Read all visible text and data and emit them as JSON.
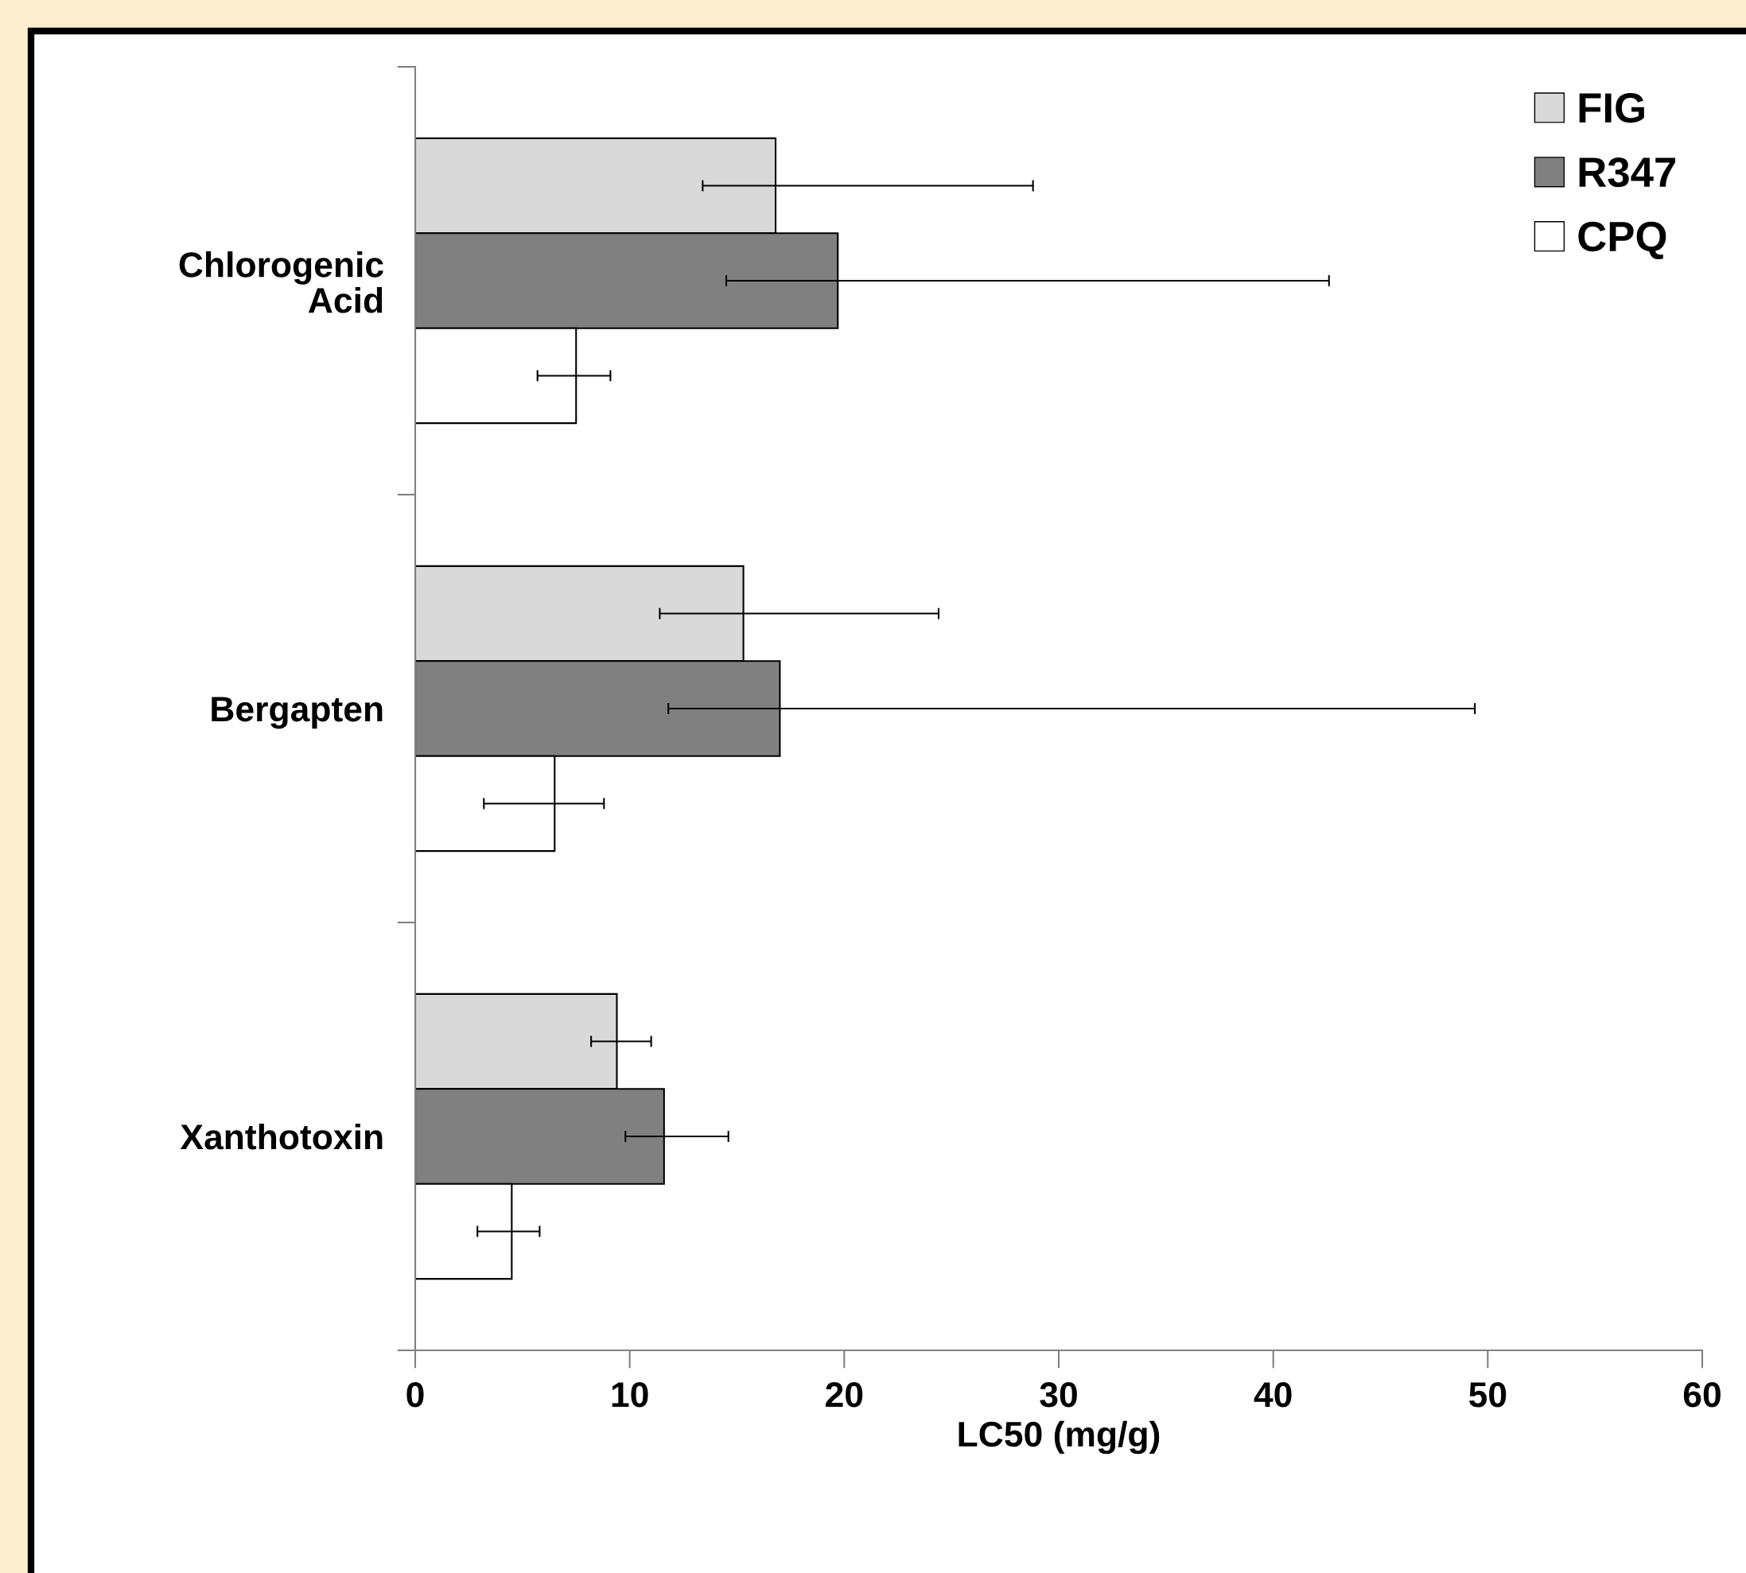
{
  "chart_data": {
    "type": "bar",
    "orientation": "horizontal",
    "xlabel": "LC50 (mg/g)",
    "categories": [
      "Chlorogenic Acid",
      "Bergapten",
      "Xanthotoxin"
    ],
    "series": [
      {
        "name": "FIG",
        "color": "#d9d9d9",
        "values": [
          16.8,
          15.3,
          9.4
        ],
        "errors": [
          [
            13.4,
            28.8
          ],
          [
            11.4,
            24.4
          ],
          [
            8.2,
            11.0
          ]
        ]
      },
      {
        "name": "R347",
        "color": "#808080",
        "values": [
          19.7,
          17.0,
          11.6
        ],
        "errors": [
          [
            14.5,
            42.6
          ],
          [
            11.8,
            49.4
          ],
          [
            9.8,
            14.6
          ]
        ]
      },
      {
        "name": "CPQ",
        "color": "#ffffff",
        "values": [
          7.5,
          6.5,
          4.5
        ],
        "errors": [
          [
            5.7,
            9.1
          ],
          [
            3.2,
            8.8
          ],
          [
            2.9,
            5.8
          ]
        ]
      }
    ],
    "xlim": [
      0,
      60
    ],
    "xticks": [
      0,
      10,
      20,
      30,
      40,
      50,
      60
    ],
    "grid": false,
    "legend": "top right"
  }
}
